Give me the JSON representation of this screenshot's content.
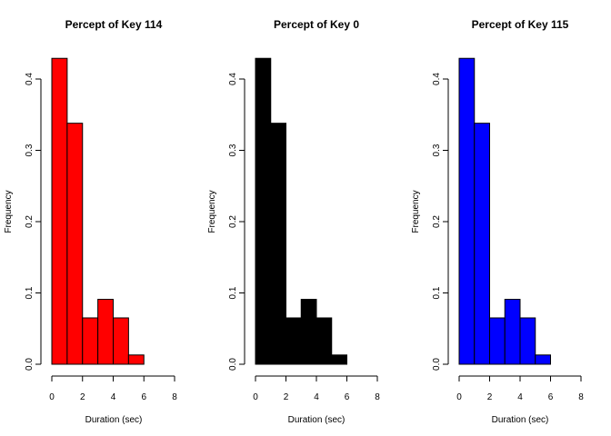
{
  "chart_data": [
    {
      "type": "bar",
      "title": "Percept of Key 114",
      "xlabel": "Duration (sec)",
      "ylabel": "Frequency",
      "bin_edges": [
        0,
        1,
        2,
        3,
        4,
        5,
        6,
        7,
        8
      ],
      "values": [
        0.429,
        0.338,
        0.065,
        0.091,
        0.065,
        0.013,
        0.0,
        0.0
      ],
      "xlim": [
        0,
        8
      ],
      "ylim": [
        0,
        0.43
      ],
      "xticks": [
        0,
        2,
        4,
        6,
        8
      ],
      "yticks": [
        0.0,
        0.1,
        0.2,
        0.3,
        0.4
      ],
      "xtick_labels": [
        "0",
        "2",
        "4",
        "6",
        "8"
      ],
      "ytick_labels": [
        "0.0",
        "0.1",
        "0.2",
        "0.3",
        "0.4"
      ],
      "color": "#ff0000",
      "grid": false
    },
    {
      "type": "bar",
      "title": "Percept of Key 0",
      "xlabel": "Duration (sec)",
      "ylabel": "Frequency",
      "bin_edges": [
        0,
        1,
        2,
        3,
        4,
        5,
        6,
        7,
        8
      ],
      "values": [
        0.429,
        0.338,
        0.065,
        0.091,
        0.065,
        0.013,
        0.0,
        0.0
      ],
      "xlim": [
        0,
        8
      ],
      "ylim": [
        0,
        0.43
      ],
      "xticks": [
        0,
        2,
        4,
        6,
        8
      ],
      "yticks": [
        0.0,
        0.1,
        0.2,
        0.3,
        0.4
      ],
      "xtick_labels": [
        "0",
        "2",
        "4",
        "6",
        "8"
      ],
      "ytick_labels": [
        "0.0",
        "0.1",
        "0.2",
        "0.3",
        "0.4"
      ],
      "color": "#000000",
      "grid": false
    },
    {
      "type": "bar",
      "title": "Percept of Key 115",
      "xlabel": "Duration (sec)",
      "ylabel": "Frequency",
      "bin_edges": [
        0,
        1,
        2,
        3,
        4,
        5,
        6,
        7,
        8
      ],
      "values": [
        0.429,
        0.338,
        0.065,
        0.091,
        0.065,
        0.013,
        0.0,
        0.0
      ],
      "xlim": [
        0,
        8
      ],
      "ylim": [
        0,
        0.43
      ],
      "xticks": [
        0,
        2,
        4,
        6,
        8
      ],
      "yticks": [
        0.0,
        0.1,
        0.2,
        0.3,
        0.4
      ],
      "xtick_labels": [
        "0",
        "2",
        "4",
        "6",
        "8"
      ],
      "ytick_labels": [
        "0.0",
        "0.1",
        "0.2",
        "0.3",
        "0.4"
      ],
      "color": "#0000ff",
      "grid": false
    }
  ]
}
